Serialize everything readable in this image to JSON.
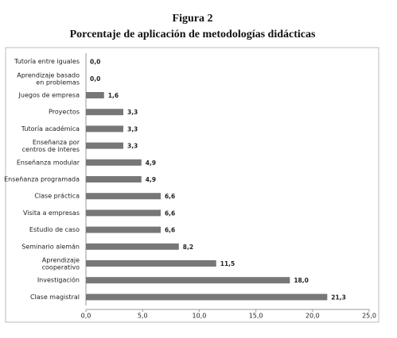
{
  "chart_data": {
    "type": "bar",
    "orientation": "horizontal",
    "title": "Figura 2",
    "subtitle": "Porcentaje de aplicación de metodologías didácticas",
    "categories": [
      "Tutoría entre iguales",
      "Aprendizaje basado\nen problemas",
      "Juegos de empresa",
      "Proyectos",
      "Tutoría académica",
      "Enseñanza por\ncentros de interes",
      "Enseñanza modular",
      "Enseñanza programada",
      "Clase práctica",
      "Visita a empresas",
      "Estudio de caso",
      "Seminario alemán",
      "Aprendizaje\ncooperativo",
      "Investigación",
      "Clase magistral"
    ],
    "values": [
      0.0,
      0.0,
      1.6,
      3.3,
      3.3,
      3.3,
      4.9,
      4.9,
      6.6,
      6.6,
      6.6,
      8.2,
      11.5,
      18.0,
      21.3
    ],
    "value_labels": [
      "0,0",
      "0,0",
      "1,6",
      "3,3",
      "3,3",
      "3,3",
      "4,9",
      "4,9",
      "6,6",
      "6,6",
      "6,6",
      "8,2",
      "11,5",
      "18,0",
      "21,3"
    ],
    "color": "#777777",
    "xlim": [
      0,
      25
    ],
    "xticks": [
      {
        "value": 0,
        "label": "0,0"
      },
      {
        "value": 5,
        "label": "5,0"
      },
      {
        "value": 10,
        "label": "10,0"
      },
      {
        "value": 15,
        "label": "15,0"
      },
      {
        "value": 20,
        "label": "20,0"
      },
      {
        "value": 25,
        "label": "25,0"
      }
    ]
  }
}
